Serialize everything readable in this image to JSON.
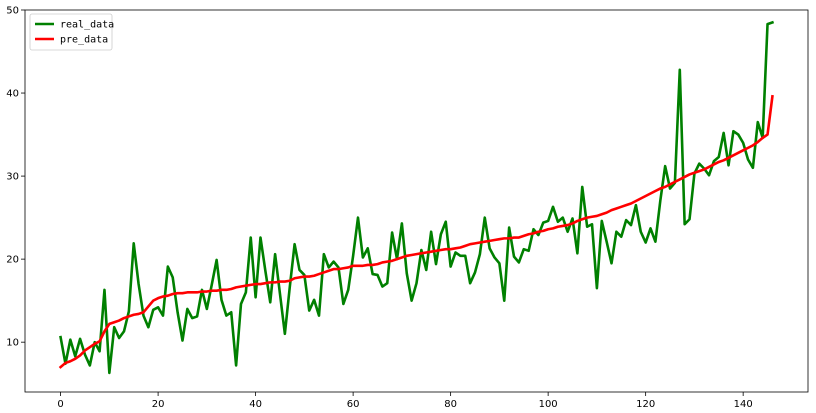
{
  "chart_data": {
    "type": "line",
    "title": "",
    "xlabel": "",
    "ylabel": "",
    "xlim": [
      -7.3,
      153.3
    ],
    "ylim": [
      4.0,
      50.0
    ],
    "xticks": [
      0,
      20,
      40,
      60,
      80,
      100,
      120,
      140
    ],
    "yticks": [
      10,
      20,
      30,
      40,
      50
    ],
    "grid": false,
    "legend_position": "top-left",
    "series": [
      {
        "name": "real_data",
        "color": "#008000",
        "values": [
          10.6,
          7.4,
          10.3,
          8.3,
          10.4,
          8.5,
          7.2,
          10.0,
          8.9,
          16.3,
          6.3,
          11.8,
          10.5,
          11.3,
          13.7,
          21.9,
          17.0,
          13.2,
          11.8,
          13.9,
          14.2,
          13.2,
          19.1,
          17.8,
          13.6,
          10.2,
          14.0,
          12.9,
          13.1,
          16.3,
          14.0,
          16.9,
          19.9,
          15.1,
          13.2,
          13.6,
          7.2,
          14.6,
          16.0,
          22.6,
          15.4,
          22.6,
          18.6,
          14.8,
          20.6,
          15.8,
          11.0,
          16.6,
          21.8,
          18.7,
          18.1,
          13.8,
          15.1,
          13.2,
          20.6,
          19.0,
          19.7,
          19.0,
          14.6,
          16.3,
          20.4,
          25.0,
          20.2,
          21.3,
          18.2,
          18.1,
          16.7,
          17.1,
          23.2,
          20.0,
          24.3,
          18.3,
          15.0,
          17.1,
          21.1,
          18.7,
          23.3,
          19.4,
          23.0,
          24.5,
          19.1,
          20.8,
          20.4,
          20.4,
          17.1,
          18.4,
          20.6,
          25.0,
          21.3,
          20.2,
          19.5,
          15.0,
          23.8,
          20.3,
          19.6,
          21.2,
          21.0,
          23.6,
          22.9,
          24.4,
          24.6,
          26.3,
          24.5,
          25.0,
          23.3,
          24.9,
          20.7,
          28.7,
          23.9,
          24.2,
          16.5,
          24.6,
          22.1,
          19.5,
          23.3,
          22.7,
          24.7,
          24.1,
          26.5,
          23.3,
          22.0,
          23.7,
          22.1,
          27.0,
          31.2,
          28.5,
          29.2,
          42.8,
          24.2,
          24.8,
          30.3,
          31.5,
          30.9,
          30.1,
          31.8,
          32.3,
          35.2,
          31.3,
          35.4,
          35.0,
          34.0,
          32.0,
          31.0,
          36.5,
          34.6,
          48.3,
          48.5
        ]
      },
      {
        "name": "pre_data",
        "color": "#ff0000",
        "values": [
          7.0,
          7.5,
          7.7,
          8.0,
          8.4,
          9.0,
          9.4,
          9.8,
          10.1,
          11.3,
          12.2,
          12.4,
          12.6,
          12.9,
          13.1,
          13.3,
          13.4,
          13.6,
          14.3,
          15.0,
          15.3,
          15.5,
          15.6,
          15.8,
          15.9,
          15.9,
          16.0,
          16.0,
          16.0,
          16.1,
          16.1,
          16.2,
          16.2,
          16.3,
          16.3,
          16.4,
          16.6,
          16.7,
          16.8,
          16.9,
          17.0,
          17.0,
          17.1,
          17.2,
          17.2,
          17.3,
          17.3,
          17.4,
          17.7,
          17.8,
          17.9,
          17.9,
          18.0,
          18.2,
          18.4,
          18.6,
          18.8,
          18.8,
          18.9,
          19.0,
          19.2,
          19.2,
          19.2,
          19.3,
          19.3,
          19.4,
          19.6,
          19.7,
          19.8,
          20.0,
          20.2,
          20.4,
          20.5,
          20.6,
          20.7,
          20.8,
          20.9,
          21.0,
          21.1,
          21.2,
          21.2,
          21.3,
          21.4,
          21.6,
          21.8,
          21.9,
          22.0,
          22.1,
          22.2,
          22.3,
          22.4,
          22.5,
          22.5,
          22.6,
          22.6,
          22.8,
          23.0,
          23.1,
          23.3,
          23.4,
          23.6,
          23.7,
          23.9,
          24.0,
          24.1,
          24.3,
          24.6,
          24.8,
          25.0,
          25.1,
          25.2,
          25.4,
          25.6,
          25.9,
          26.1,
          26.3,
          26.5,
          26.7,
          27.0,
          27.3,
          27.6,
          27.9,
          28.2,
          28.5,
          28.7,
          29.0,
          29.3,
          29.6,
          29.9,
          30.2,
          30.4,
          30.6,
          30.8,
          31.1,
          31.4,
          31.7,
          31.9,
          32.2,
          32.5,
          32.8,
          33.1,
          33.4,
          33.7,
          34.1,
          34.6,
          35.0,
          39.6
        ]
      }
    ]
  }
}
